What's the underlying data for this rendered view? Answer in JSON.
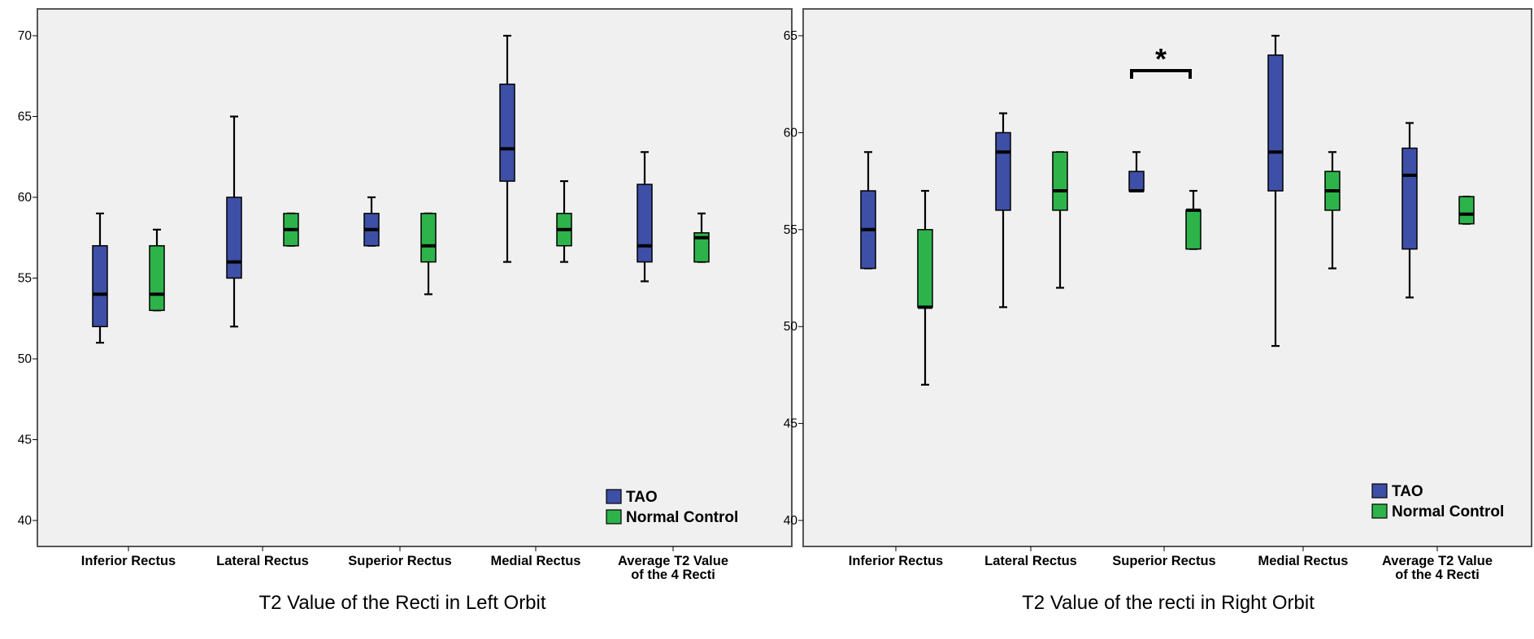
{
  "colors": {
    "tao": "#3d4fa6",
    "control": "#2db34a",
    "plot_bg": "#f0f0f0",
    "frame": "#555555"
  },
  "chart_data": [
    {
      "type": "boxplot",
      "title": "T2 Value of the Recti in Left Orbit",
      "xlabel": "T2 Value of the Recti in Left Orbit",
      "ylabel": "",
      "ylim": [
        38.5,
        72
      ],
      "yticks": [
        40,
        45,
        50,
        55,
        60,
        65,
        70
      ],
      "yticklabels": [
        "40",
        "45",
        "50",
        "55",
        "60",
        "65",
        "70"
      ],
      "categories": [
        "Inferior Rectus",
        "Lateral Rectus",
        "Superior Rectus",
        "Medial Rectus",
        "Average T2 Value of the 4 Recti"
      ],
      "category_lines": [
        [
          "Inferior Rectus"
        ],
        [
          "Lateral Rectus"
        ],
        [
          "Superior Rectus"
        ],
        [
          "Medial Rectus"
        ],
        [
          "Average T2 Value",
          "of the 4 Recti"
        ]
      ],
      "legend": {
        "position": "bottom-right",
        "entries": [
          "TAO",
          "Normal Control"
        ]
      },
      "series": [
        {
          "name": "TAO",
          "color": "#3d4fa6",
          "boxes": [
            {
              "min": 51,
              "q1": 52,
              "median": 54,
              "q3": 57,
              "max": 59
            },
            {
              "min": 52,
              "q1": 55,
              "median": 56,
              "q3": 60,
              "max": 65
            },
            {
              "min": 57,
              "q1": 57,
              "median": 58,
              "q3": 59,
              "max": 60
            },
            {
              "min": 56,
              "q1": 61,
              "median": 63,
              "q3": 67,
              "max": 70
            },
            {
              "min": 54.8,
              "q1": 56,
              "median": 57,
              "q3": 60.8,
              "max": 62.8
            }
          ]
        },
        {
          "name": "Normal Control",
          "color": "#2db34a",
          "boxes": [
            {
              "min": 53,
              "q1": 53,
              "median": 54,
              "q3": 57,
              "max": 58
            },
            {
              "min": 57,
              "q1": 57,
              "median": 58,
              "q3": 59,
              "max": 59
            },
            {
              "min": 54,
              "q1": 56,
              "median": 57,
              "q3": 59,
              "max": 59
            },
            {
              "min": 56,
              "q1": 57,
              "median": 58,
              "q3": 59,
              "max": 61
            },
            {
              "min": 56,
              "q1": 56,
              "median": 57.5,
              "q3": 57.8,
              "max": 59
            }
          ]
        }
      ],
      "annotations": []
    },
    {
      "type": "boxplot",
      "title": "T2 Value of the recti in Right Orbit",
      "xlabel": "T2 Value of the recti in Right Orbit",
      "ylabel": "",
      "ylim": [
        39.3,
        66.2
      ],
      "yticks": [
        40,
        45,
        50,
        55,
        60,
        65
      ],
      "yticklabels": [
        "40",
        "45",
        "50",
        "55",
        "60",
        "65"
      ],
      "categories": [
        "Inferior Rectus",
        "Lateral Rectus",
        "Superior Rectus",
        "Medial Rectus",
        "Average T2 Value of the 4 Recti"
      ],
      "category_lines": [
        [
          "Inferior Rectus"
        ],
        [
          "Lateral Rectus"
        ],
        [
          "Superior Rectus"
        ],
        [
          "Medial Rectus"
        ],
        [
          "Average T2 Value",
          "of the 4 Recti"
        ]
      ],
      "legend": {
        "position": "bottom-right",
        "entries": [
          "TAO",
          "Normal Control"
        ]
      },
      "series": [
        {
          "name": "TAO",
          "color": "#3d4fa6",
          "boxes": [
            {
              "min": 53,
              "q1": 53,
              "median": 55,
              "q3": 57,
              "max": 59
            },
            {
              "min": 51,
              "q1": 56,
              "median": 59,
              "q3": 60,
              "max": 61
            },
            {
              "min": 57,
              "q1": 57,
              "median": 57,
              "q3": 58,
              "max": 59
            },
            {
              "min": 49,
              "q1": 57,
              "median": 59,
              "q3": 64,
              "max": 65
            },
            {
              "min": 51.5,
              "q1": 54,
              "median": 57.8,
              "q3": 59.2,
              "max": 60.5
            }
          ]
        },
        {
          "name": "Normal Control",
          "color": "#2db34a",
          "boxes": [
            {
              "min": 47,
              "q1": 51,
              "median": 51,
              "q3": 55,
              "max": 57
            },
            {
              "min": 52,
              "q1": 56,
              "median": 57,
              "q3": 59,
              "max": 59
            },
            {
              "min": 54,
              "q1": 54,
              "median": 56,
              "q3": 56,
              "max": 57
            },
            {
              "min": 53,
              "q1": 56,
              "median": 57,
              "q3": 58,
              "max": 59
            },
            {
              "min": 55.3,
              "q1": 55.3,
              "median": 55.8,
              "q3": 56.7,
              "max": 56.7
            }
          ]
        }
      ],
      "annotations": [
        {
          "text": "*",
          "category": "Superior Rectus",
          "type": "significance-bracket",
          "y": 63.2
        }
      ]
    }
  ]
}
